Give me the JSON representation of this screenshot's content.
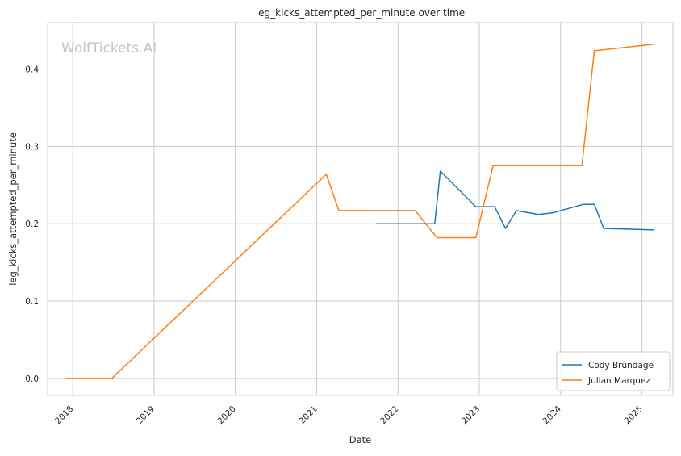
{
  "chart_data": {
    "type": "line",
    "title": "leg_kicks_attempted_per_minute over time",
    "xlabel": "Date",
    "ylabel": "leg_kicks_attempted_per_minute",
    "watermark": "WolfTickets.AI",
    "x_axis": "date",
    "xlim": [
      "2017-09-10",
      "2025-05-20"
    ],
    "ylim": [
      -0.022,
      0.46
    ],
    "xticks": [
      "2018-01-01",
      "2019-01-01",
      "2020-01-01",
      "2021-01-01",
      "2022-01-01",
      "2023-01-01",
      "2024-01-01",
      "2025-01-01"
    ],
    "xtick_labels": [
      "2018",
      "2019",
      "2020",
      "2021",
      "2022",
      "2023",
      "2024",
      "2025"
    ],
    "yticks": [
      0.0,
      0.1,
      0.2,
      0.3,
      0.4
    ],
    "ytick_labels": [
      "0.0",
      "0.1",
      "0.2",
      "0.3",
      "0.4"
    ],
    "grid": true,
    "legend_position": "bottom-right",
    "series": [
      {
        "name": "Cody Brundage",
        "color": "#1f77b4",
        "points": [
          {
            "x": "2021-09-25",
            "y": 0.2
          },
          {
            "x": "2022-06-15",
            "y": 0.2
          },
          {
            "x": "2022-07-10",
            "y": 0.268
          },
          {
            "x": "2022-12-17",
            "y": 0.222
          },
          {
            "x": "2023-03-11",
            "y": 0.222
          },
          {
            "x": "2023-04-29",
            "y": 0.194
          },
          {
            "x": "2023-06-17",
            "y": 0.217
          },
          {
            "x": "2023-09-23",
            "y": 0.212
          },
          {
            "x": "2023-11-25",
            "y": 0.214
          },
          {
            "x": "2024-04-13",
            "y": 0.225
          },
          {
            "x": "2024-06-01",
            "y": 0.225
          },
          {
            "x": "2024-07-13",
            "y": 0.194
          },
          {
            "x": "2025-02-22",
            "y": 0.192
          }
        ]
      },
      {
        "name": "Julian Marquez",
        "color": "#ff7f0e",
        "points": [
          {
            "x": "2017-12-01",
            "y": 0.0
          },
          {
            "x": "2018-06-25",
            "y": 0.0
          },
          {
            "x": "2021-02-13",
            "y": 0.264
          },
          {
            "x": "2021-04-10",
            "y": 0.217
          },
          {
            "x": "2022-03-19",
            "y": 0.217
          },
          {
            "x": "2022-06-25",
            "y": 0.182
          },
          {
            "x": "2022-12-17",
            "y": 0.182
          },
          {
            "x": "2023-03-04",
            "y": 0.275
          },
          {
            "x": "2024-04-06",
            "y": 0.275
          },
          {
            "x": "2024-06-01",
            "y": 0.424
          },
          {
            "x": "2024-06-15",
            "y": 0.424
          },
          {
            "x": "2025-02-22",
            "y": 0.432
          }
        ]
      }
    ]
  }
}
